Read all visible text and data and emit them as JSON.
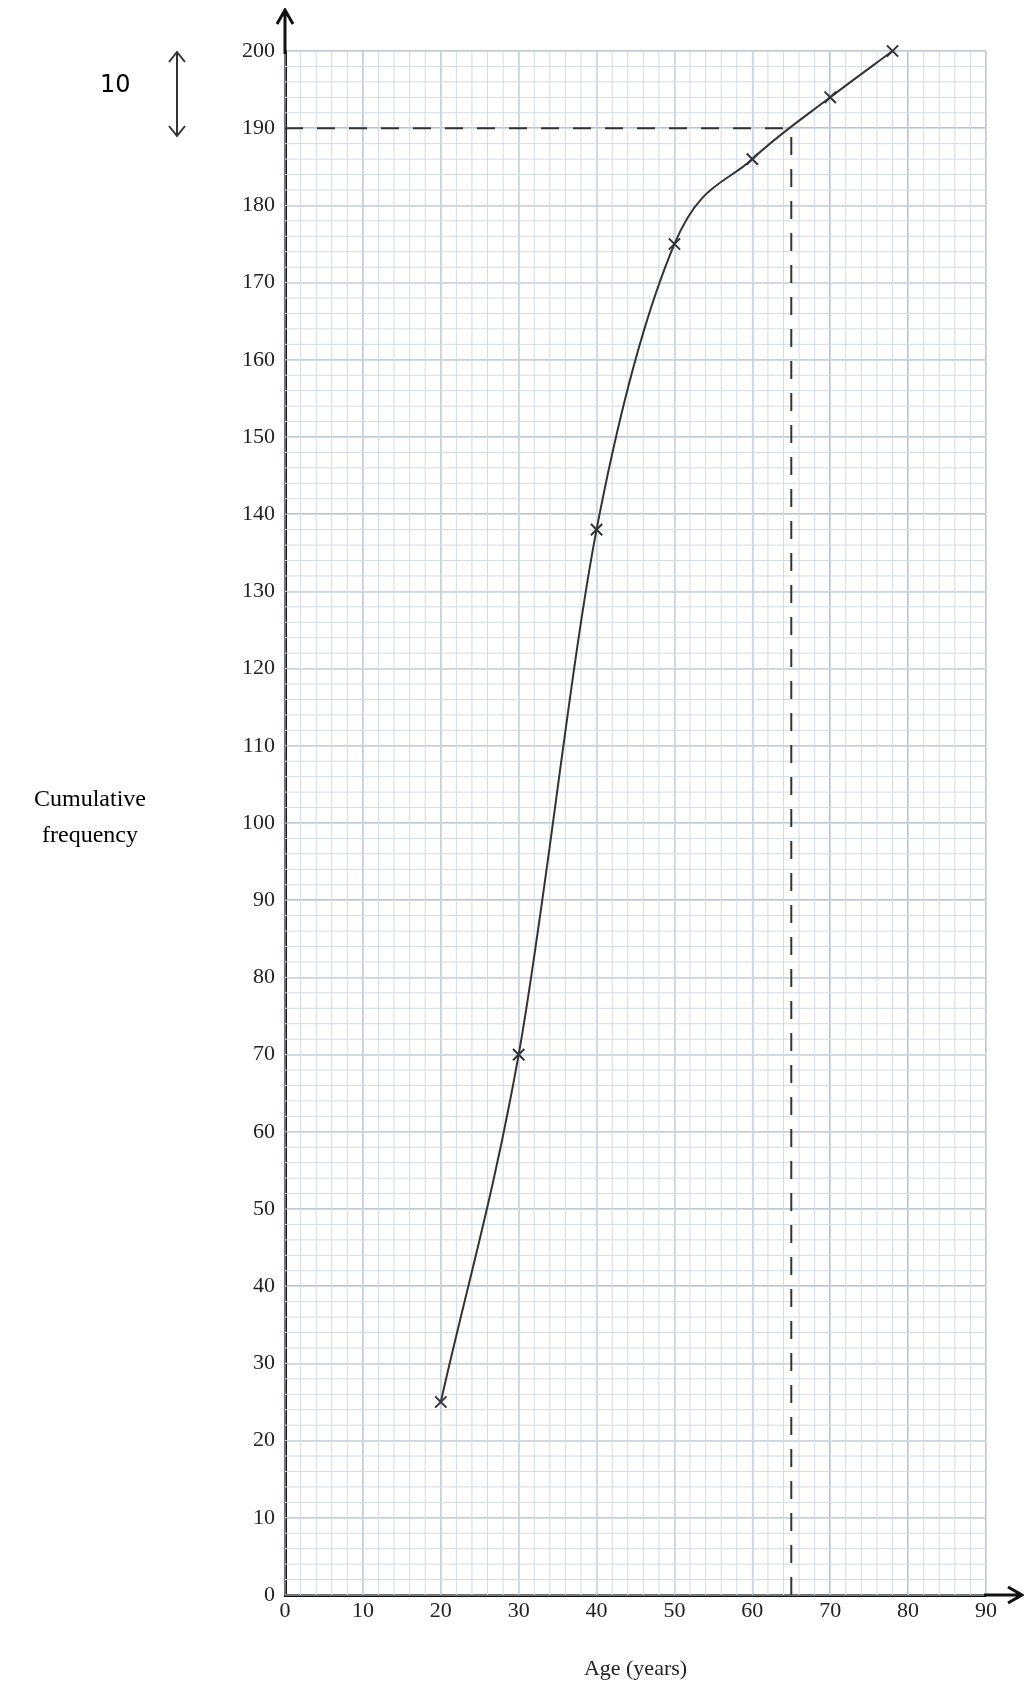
{
  "chart_data": {
    "type": "line",
    "xlabel": "Age (years)",
    "ylabel": "Cumulative frequency",
    "x": [
      20,
      30,
      40,
      50,
      60,
      70,
      78
    ],
    "series": [
      {
        "color": "#333333",
        "values": [
          25,
          70,
          138,
          175,
          186,
          194,
          200
        ]
      }
    ],
    "xlim": [
      0,
      90
    ],
    "ylim": [
      0,
      200
    ],
    "xticks": [
      0,
      10,
      20,
      30,
      40,
      50,
      60,
      70,
      80,
      90
    ],
    "yticks": [
      0,
      10,
      20,
      30,
      40,
      50,
      60,
      70,
      80,
      90,
      100,
      110,
      120,
      130,
      140,
      150,
      160,
      170,
      180,
      190,
      200
    ],
    "grid": true,
    "legend": false,
    "marker": "cross",
    "line_style": "solid",
    "ref_lines": [
      {
        "axis": "y",
        "value": 190,
        "color": "#333333",
        "line_style": "dashed"
      },
      {
        "axis": "x",
        "value": 65,
        "color": "#333333",
        "line_style": "dashed"
      }
    ],
    "annotations": [
      "10"
    ]
  }
}
